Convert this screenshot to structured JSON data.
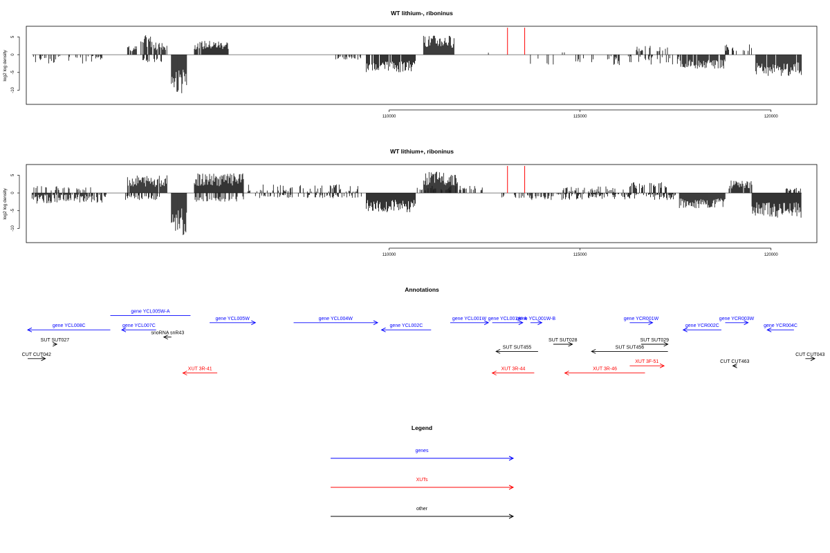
{
  "chart_data": [
    {
      "type": "bar",
      "title": "WT lithium-, riboninus",
      "ylabel": "log2 log density",
      "xlabel": "",
      "xlim": [
        100500,
        121200
      ],
      "ylim": [
        -14,
        8
      ],
      "xticks": [
        "110000",
        "115000",
        "120000"
      ],
      "yticks": [
        "5",
        "0",
        "-5",
        "-10"
      ],
      "grid": false,
      "markers": [
        {
          "x": 113100,
          "y": 7.6,
          "color": "#ff0000"
        },
        {
          "x": 113550,
          "y": 7.6,
          "color": "#ff0000"
        }
      ],
      "segments": [
        {
          "x0": 100650,
          "x1": 102500,
          "y": -2.5,
          "density": 0.25,
          "spiky": true
        },
        {
          "x0": 103150,
          "x1": 103400,
          "y": 2.5,
          "density": 0.7
        },
        {
          "x0": 103500,
          "x1": 103800,
          "y": 5.5,
          "density": 0.9
        },
        {
          "x0": 103800,
          "x1": 104200,
          "y": 3.5,
          "density": 0.6
        },
        {
          "x0": 103550,
          "x1": 104050,
          "y": -2.5,
          "density": 0.35
        },
        {
          "x0": 104300,
          "x1": 104700,
          "y": -11.0,
          "density": 1.0
        },
        {
          "x0": 104900,
          "x1": 105800,
          "y": 4.0,
          "density": 0.9
        },
        {
          "x0": 107300,
          "x1": 107400,
          "y": 1.0,
          "density": 0.2
        },
        {
          "x0": 108400,
          "x1": 108500,
          "y": 2.0,
          "density": 0.2
        },
        {
          "x0": 108600,
          "x1": 109300,
          "y": -1.5,
          "density": 0.4
        },
        {
          "x0": 109400,
          "x1": 110700,
          "y": -5.0,
          "density": 0.9
        },
        {
          "x0": 110900,
          "x1": 111700,
          "y": 5.5,
          "density": 1.0
        },
        {
          "x0": 112600,
          "x1": 112700,
          "y": 1.0,
          "density": 0.1
        },
        {
          "x0": 113700,
          "x1": 114400,
          "y": -3.0,
          "density": 0.15
        },
        {
          "x0": 114500,
          "x1": 114600,
          "y": 1.0,
          "density": 0.2
        },
        {
          "x0": 114800,
          "x1": 115500,
          "y": -2.5,
          "density": 0.15
        },
        {
          "x0": 115700,
          "x1": 117600,
          "y": -3.0,
          "density": 0.25,
          "spiky": true
        },
        {
          "x0": 116400,
          "x1": 117300,
          "y": 2.5,
          "density": 0.3
        },
        {
          "x0": 117600,
          "x1": 118800,
          "y": -4.0,
          "density": 0.9
        },
        {
          "x0": 118800,
          "x1": 119500,
          "y": 3.0,
          "density": 0.35
        },
        {
          "x0": 119600,
          "x1": 120800,
          "y": -6.0,
          "density": 0.95
        }
      ]
    },
    {
      "type": "bar",
      "title": "WT lithium+, riboninus",
      "ylabel": "log2 log density",
      "xlabel": "",
      "xlim": [
        100500,
        121200
      ],
      "ylim": [
        -14,
        8
      ],
      "xticks": [
        "110000",
        "115000",
        "120000"
      ],
      "yticks": [
        "5",
        "0",
        "-5",
        "-10"
      ],
      "grid": false,
      "markers": [
        {
          "x": 113100,
          "y": 7.6,
          "color": "#ff0000"
        },
        {
          "x": 113550,
          "y": 7.6,
          "color": "#ff0000"
        }
      ],
      "segments": [
        {
          "x0": 100650,
          "x1": 102600,
          "y": -3.0,
          "density": 0.8,
          "spiky": true
        },
        {
          "x0": 100700,
          "x1": 102300,
          "y": 2.0,
          "density": 0.25
        },
        {
          "x0": 103150,
          "x1": 104200,
          "y": 5.0,
          "density": 0.95
        },
        {
          "x0": 103100,
          "x1": 104100,
          "y": -2.0,
          "density": 0.5
        },
        {
          "x0": 104300,
          "x1": 104700,
          "y": -12.0,
          "density": 1.0
        },
        {
          "x0": 104900,
          "x1": 106200,
          "y": 5.5,
          "density": 1.0
        },
        {
          "x0": 104900,
          "x1": 106200,
          "y": -2.5,
          "density": 0.5
        },
        {
          "x0": 106300,
          "x1": 109200,
          "y": 2.5,
          "density": 0.35,
          "spiky": true
        },
        {
          "x0": 106500,
          "x1": 109300,
          "y": -1.5,
          "density": 0.35
        },
        {
          "x0": 109400,
          "x1": 110700,
          "y": -5.5,
          "density": 1.0
        },
        {
          "x0": 110700,
          "x1": 112500,
          "y": 2.0,
          "density": 0.35
        },
        {
          "x0": 110900,
          "x1": 111800,
          "y": 6.0,
          "density": 1.0
        },
        {
          "x0": 112900,
          "x1": 113700,
          "y": -1.5,
          "density": 0.4
        },
        {
          "x0": 113700,
          "x1": 114300,
          "y": -2.0,
          "density": 0.4
        },
        {
          "x0": 114500,
          "x1": 116200,
          "y": 2.0,
          "density": 0.4,
          "spiky": true
        },
        {
          "x0": 114400,
          "x1": 117500,
          "y": -2.0,
          "density": 0.6,
          "spiky": true
        },
        {
          "x0": 116300,
          "x1": 117300,
          "y": 3.0,
          "density": 0.5
        },
        {
          "x0": 117600,
          "x1": 118800,
          "y": -4.5,
          "density": 1.0
        },
        {
          "x0": 118900,
          "x1": 119500,
          "y": 3.5,
          "density": 0.9
        },
        {
          "x0": 119500,
          "x1": 120800,
          "y": -7.0,
          "density": 1.0
        },
        {
          "x0": 120300,
          "x1": 120800,
          "y": 1.5,
          "density": 0.4
        }
      ]
    }
  ],
  "annotations": {
    "title": "Annotations",
    "items": [
      {
        "label": "gene YCL008C",
        "x0": 100300,
        "x1": 102700,
        "row": 3,
        "dir": "left",
        "color": "#0000ff"
      },
      {
        "label": "gene YCL005W-A",
        "x0": 102700,
        "x1": 104800,
        "row": 1,
        "dir": "none",
        "color": "#0000ff"
      },
      {
        "label": "gene YCL007C",
        "x0": 103000,
        "x1": 103900,
        "row": 3,
        "dir": "left",
        "color": "#0000ff"
      },
      {
        "label": "gene YCL005W",
        "x0": 105300,
        "x1": 106500,
        "row": 2,
        "dir": "right",
        "color": "#0000ff"
      },
      {
        "label": "gene YCL004W",
        "x0": 107500,
        "x1": 109700,
        "row": 2,
        "dir": "right",
        "color": "#0000ff"
      },
      {
        "label": "gene YCL002C",
        "x0": 109800,
        "x1": 111100,
        "row": 3,
        "dir": "left",
        "color": "#0000ff"
      },
      {
        "label": "gene YCL001W",
        "x0": 111600,
        "x1": 112600,
        "row": 2,
        "dir": "right",
        "color": "#0000ff"
      },
      {
        "label": "gene YCL001W-A",
        "x0": 112700,
        "x1": 113500,
        "row": 2,
        "dir": "right",
        "color": "#0000ff"
      },
      {
        "label": "gene YCL001W-B",
        "x0": 113700,
        "x1": 114000,
        "row": 2,
        "dir": "right",
        "color": "#0000ff"
      },
      {
        "label": "gene YCR001W",
        "x0": 116300,
        "x1": 116900,
        "row": 2,
        "dir": "right",
        "color": "#0000ff"
      },
      {
        "label": "gene YCR002C",
        "x0": 117700,
        "x1": 118700,
        "row": 3,
        "dir": "left",
        "color": "#0000ff"
      },
      {
        "label": "gene YCR003W",
        "x0": 118800,
        "x1": 119400,
        "row": 2,
        "dir": "right",
        "color": "#0000ff"
      },
      {
        "label": "gene YCR004C",
        "x0": 119900,
        "x1": 120600,
        "row": 3,
        "dir": "left",
        "color": "#0000ff"
      },
      {
        "label": "SUT SUT027",
        "x0": 101200,
        "x1": 101300,
        "row": 5,
        "dir": "right",
        "color": "#000000"
      },
      {
        "label": "snoRNA snR43",
        "x0": 104100,
        "x1": 104300,
        "row": 4,
        "dir": "left",
        "color": "#000000"
      },
      {
        "label": "SUT SUT455",
        "x0": 112800,
        "x1": 113900,
        "row": 6,
        "dir": "left",
        "color": "#000000"
      },
      {
        "label": "SUT SUT028",
        "x0": 114300,
        "x1": 114800,
        "row": 5,
        "dir": "right",
        "color": "#000000"
      },
      {
        "label": "SUT SUT456",
        "x0": 115300,
        "x1": 117300,
        "row": 6,
        "dir": "left",
        "color": "#000000"
      },
      {
        "label": "SUT SUT029",
        "x0": 116600,
        "x1": 117300,
        "row": 5,
        "dir": "right",
        "color": "#000000"
      },
      {
        "label": "CUT CUT042",
        "x0": 100500,
        "x1": 101000,
        "row": 7,
        "dir": "right",
        "color": "#000000"
      },
      {
        "label": "CUT CUT463",
        "x0": 119000,
        "x1": 119100,
        "row": 8,
        "dir": "left",
        "color": "#000000"
      },
      {
        "label": "CUT CUT043",
        "x0": 120900,
        "x1": 121500,
        "row": 7,
        "dir": "right",
        "color": "#000000"
      },
      {
        "label": "XUT 3R-41",
        "x0": 104600,
        "x1": 105500,
        "row": 9,
        "dir": "left",
        "color": "#ff0000"
      },
      {
        "label": "XUT 3R-44",
        "x0": 112700,
        "x1": 113800,
        "row": 9,
        "dir": "left",
        "color": "#ff0000"
      },
      {
        "label": "XUT 3R-46",
        "x0": 114600,
        "x1": 116700,
        "row": 9,
        "dir": "left",
        "color": "#ff0000"
      },
      {
        "label": "XUT 3F-51",
        "x0": 116300,
        "x1": 117200,
        "row": 8,
        "dir": "right",
        "color": "#ff0000"
      }
    ]
  },
  "legend": {
    "title": "Legend",
    "items": [
      {
        "label": "genes",
        "color": "#0000ff"
      },
      {
        "label": "XUTs",
        "color": "#ff0000"
      },
      {
        "label": "other",
        "color": "#000000"
      }
    ]
  }
}
